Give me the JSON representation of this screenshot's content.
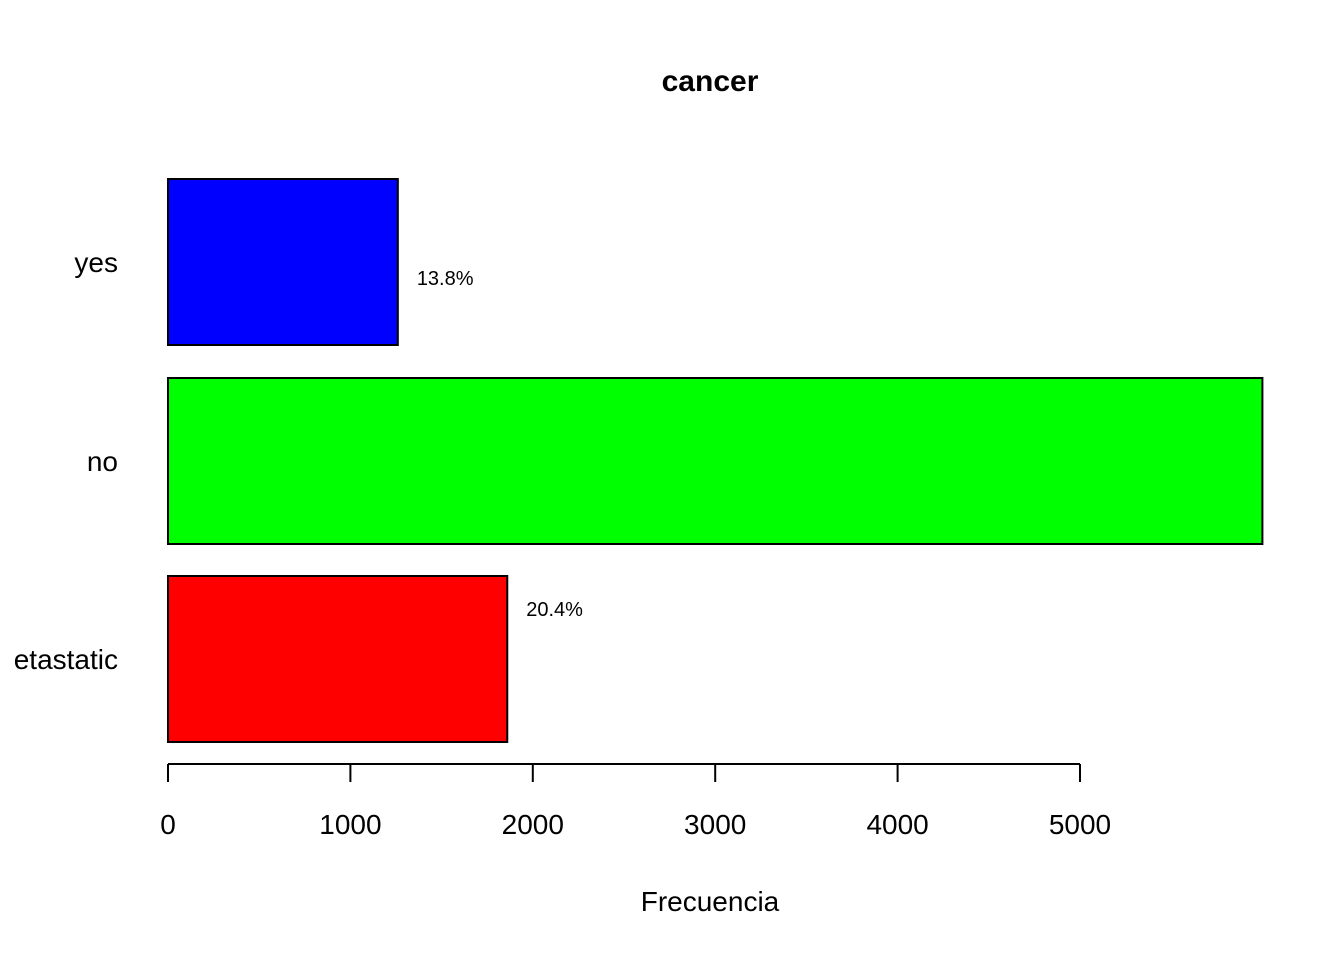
{
  "chart_data": {
    "type": "bar",
    "orientation": "horizontal",
    "title": "cancer",
    "xlabel": "Frecuencia",
    "ylabel": "",
    "categories": [
      "yes",
      "no",
      "metastatic"
    ],
    "category_labels_visible": [
      "yes",
      "no",
      "etastatic"
    ],
    "values": [
      1260,
      6000,
      1860
    ],
    "colors": [
      "#0000FF",
      "#00FF00",
      "#FF0000"
    ],
    "data_labels": [
      "13.8%",
      null,
      "20.4%"
    ],
    "xticks": [
      0,
      1000,
      2000,
      3000,
      4000,
      5000
    ],
    "xtick_labels": [
      "0",
      "1000",
      "2000",
      "3000",
      "4000",
      "5000"
    ],
    "xlim": [
      0,
      6000
    ],
    "grid": false,
    "legend": "none"
  }
}
